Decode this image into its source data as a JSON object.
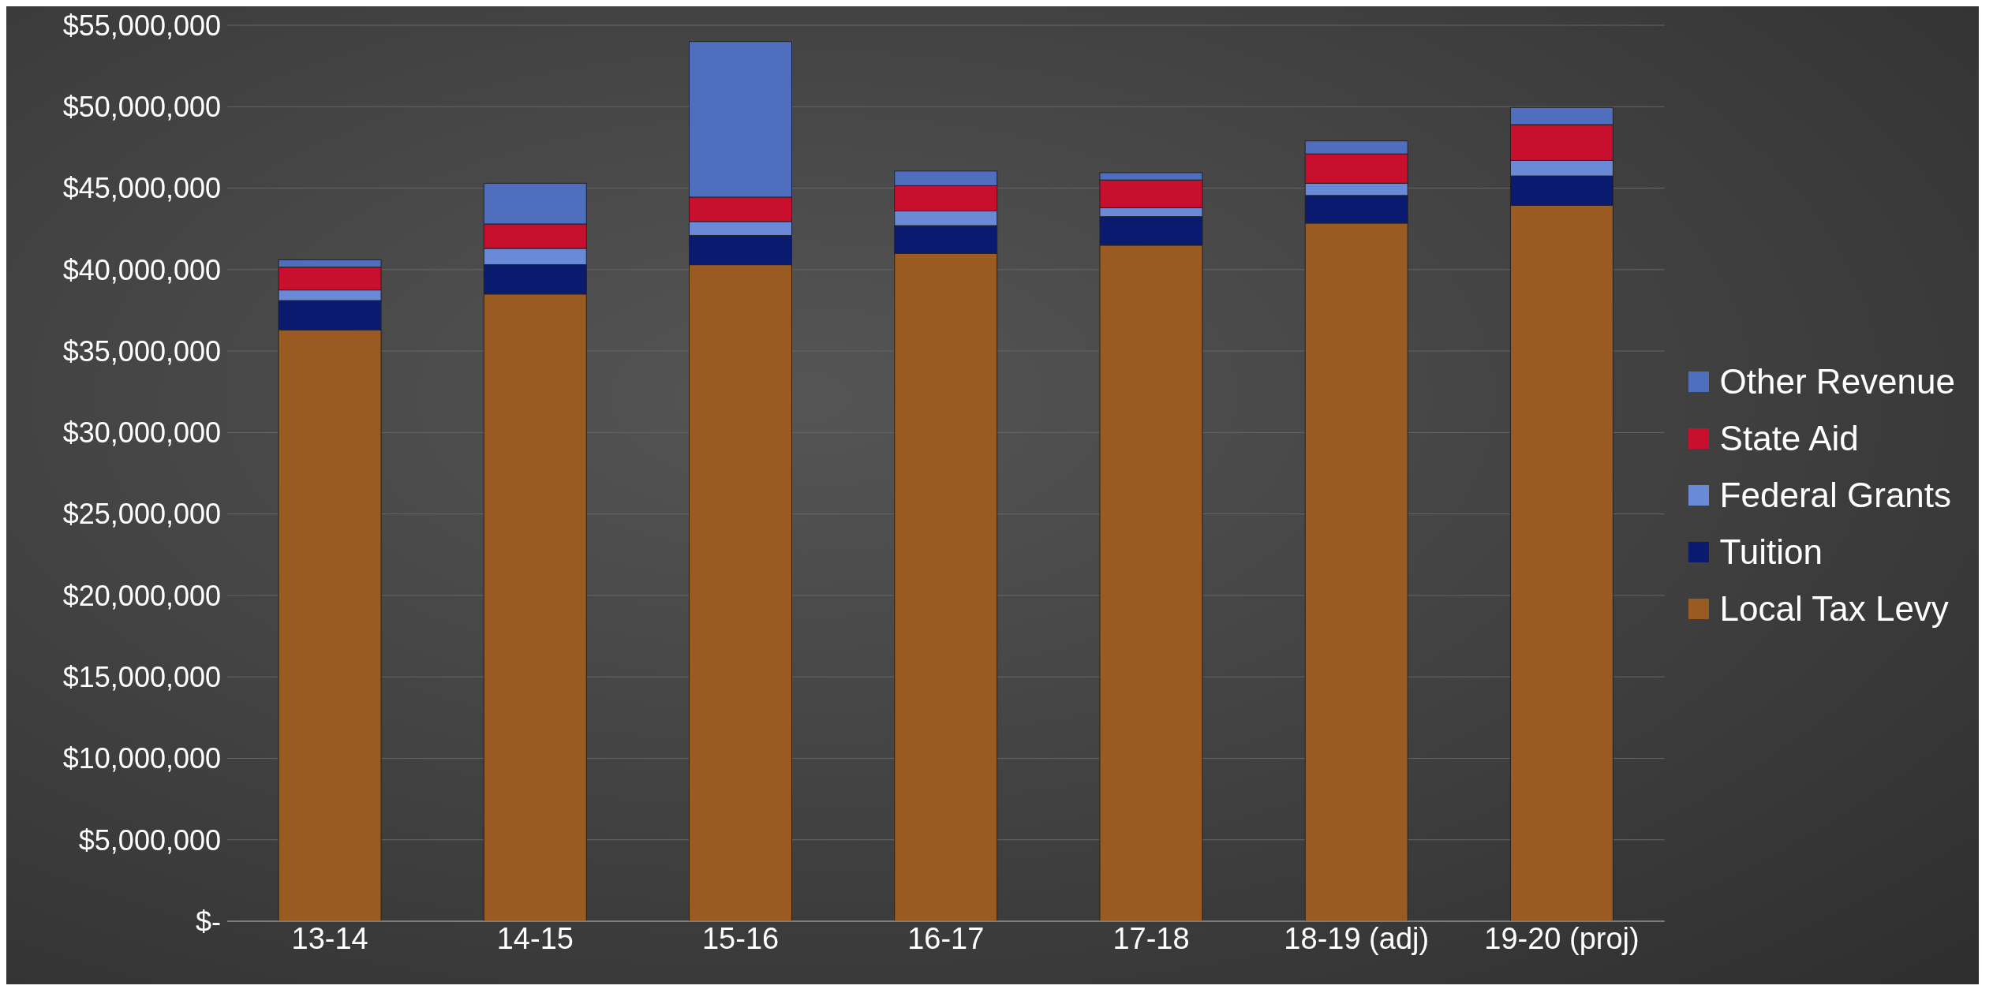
{
  "chart_data": {
    "type": "bar",
    "stacked": true,
    "categories": [
      "13-14",
      "14-15",
      "15-16",
      "16-17",
      "17-18",
      "18-19 (adj)",
      "19-20 (proj)"
    ],
    "series": [
      {
        "name": "Local Tax Levy",
        "color": "#9a5b22",
        "values": [
          36300000,
          38500000,
          40300000,
          41000000,
          41500000,
          42850000,
          43950000
        ]
      },
      {
        "name": "Tuition",
        "color": "#0a1a6e",
        "values": [
          1800000,
          1800000,
          1800000,
          1700000,
          1750000,
          1700000,
          1800000
        ]
      },
      {
        "name": "Federal Grants",
        "color": "#6a8ad8",
        "values": [
          650000,
          1000000,
          850000,
          900000,
          550000,
          750000,
          950000
        ]
      },
      {
        "name": "State Aid",
        "color": "#c8102e",
        "values": [
          1400000,
          1500000,
          1500000,
          1550000,
          1700000,
          1800000,
          2200000
        ]
      },
      {
        "name": "Other Revenue",
        "color": "#4f6ebd",
        "values": [
          450000,
          2500000,
          9550000,
          900000,
          450000,
          800000,
          1050000
        ]
      }
    ],
    "ylim": [
      0,
      55000000
    ],
    "yticks": [
      {
        "value": 0,
        "label": "$-"
      },
      {
        "value": 5000000,
        "label": "$5,000,000"
      },
      {
        "value": 10000000,
        "label": "$10,000,000"
      },
      {
        "value": 15000000,
        "label": "$15,000,000"
      },
      {
        "value": 20000000,
        "label": "$20,000,000"
      },
      {
        "value": 25000000,
        "label": "$25,000,000"
      },
      {
        "value": 30000000,
        "label": "$30,000,000"
      },
      {
        "value": 35000000,
        "label": "$35,000,000"
      },
      {
        "value": 40000000,
        "label": "$40,000,000"
      },
      {
        "value": 45000000,
        "label": "$45,000,000"
      },
      {
        "value": 50000000,
        "label": "$50,000,000"
      },
      {
        "value": 55000000,
        "label": "$55,000,000"
      }
    ],
    "grid": "y",
    "legend": "right"
  }
}
